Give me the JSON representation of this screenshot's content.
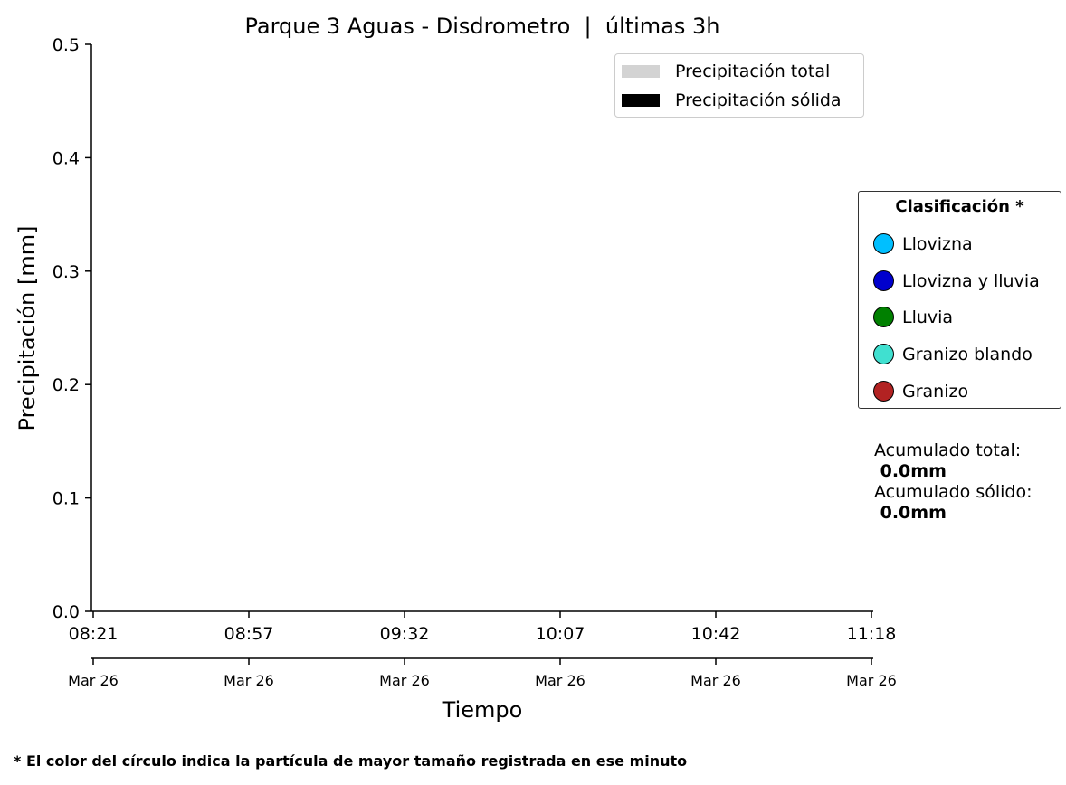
{
  "chart_data": {
    "type": "bar",
    "title": "Parque 3 Aguas - Disdrometro  |  últimas 3h",
    "xlabel": "Tiempo",
    "ylabel": "Precipitación [mm]",
    "ylim": [
      0,
      0.5
    ],
    "yticks": [
      "0.0",
      "0.1",
      "0.2",
      "0.3",
      "0.4",
      "0.5"
    ],
    "xticks": [
      {
        "time": "08:21",
        "date": "Mar 26"
      },
      {
        "time": "08:57",
        "date": "Mar 26"
      },
      {
        "time": "09:32",
        "date": "Mar 26"
      },
      {
        "time": "10:07",
        "date": "Mar 26"
      },
      {
        "time": "10:42",
        "date": "Mar 26"
      },
      {
        "time": "11:18",
        "date": "Mar 26"
      }
    ],
    "series": [
      {
        "name": "Precipitación total",
        "color": "#d3d3d3",
        "values": []
      },
      {
        "name": "Precipitación sólida",
        "color": "#000000",
        "values": []
      }
    ],
    "grid": false,
    "legend_placement": "top-right"
  },
  "classification": {
    "title": "Clasificación *",
    "items": [
      {
        "label": "Llovizna",
        "color": "#00bfff"
      },
      {
        "label": "Llovizna y lluvia",
        "color": "#0000cd"
      },
      {
        "label": "Lluvia",
        "color": "#008000"
      },
      {
        "label": "Granizo blando",
        "color": "#40e0d0"
      },
      {
        "label": "Granizo",
        "color": "#b22222"
      }
    ]
  },
  "accumulated": {
    "total_label": "Acumulado total:",
    "total_value": " 0.0mm",
    "solid_label": "Acumulado sólido:",
    "solid_value": " 0.0mm"
  },
  "footnote": "* El color del círculo indica la partícula de mayor tamaño registrada en ese minuto"
}
